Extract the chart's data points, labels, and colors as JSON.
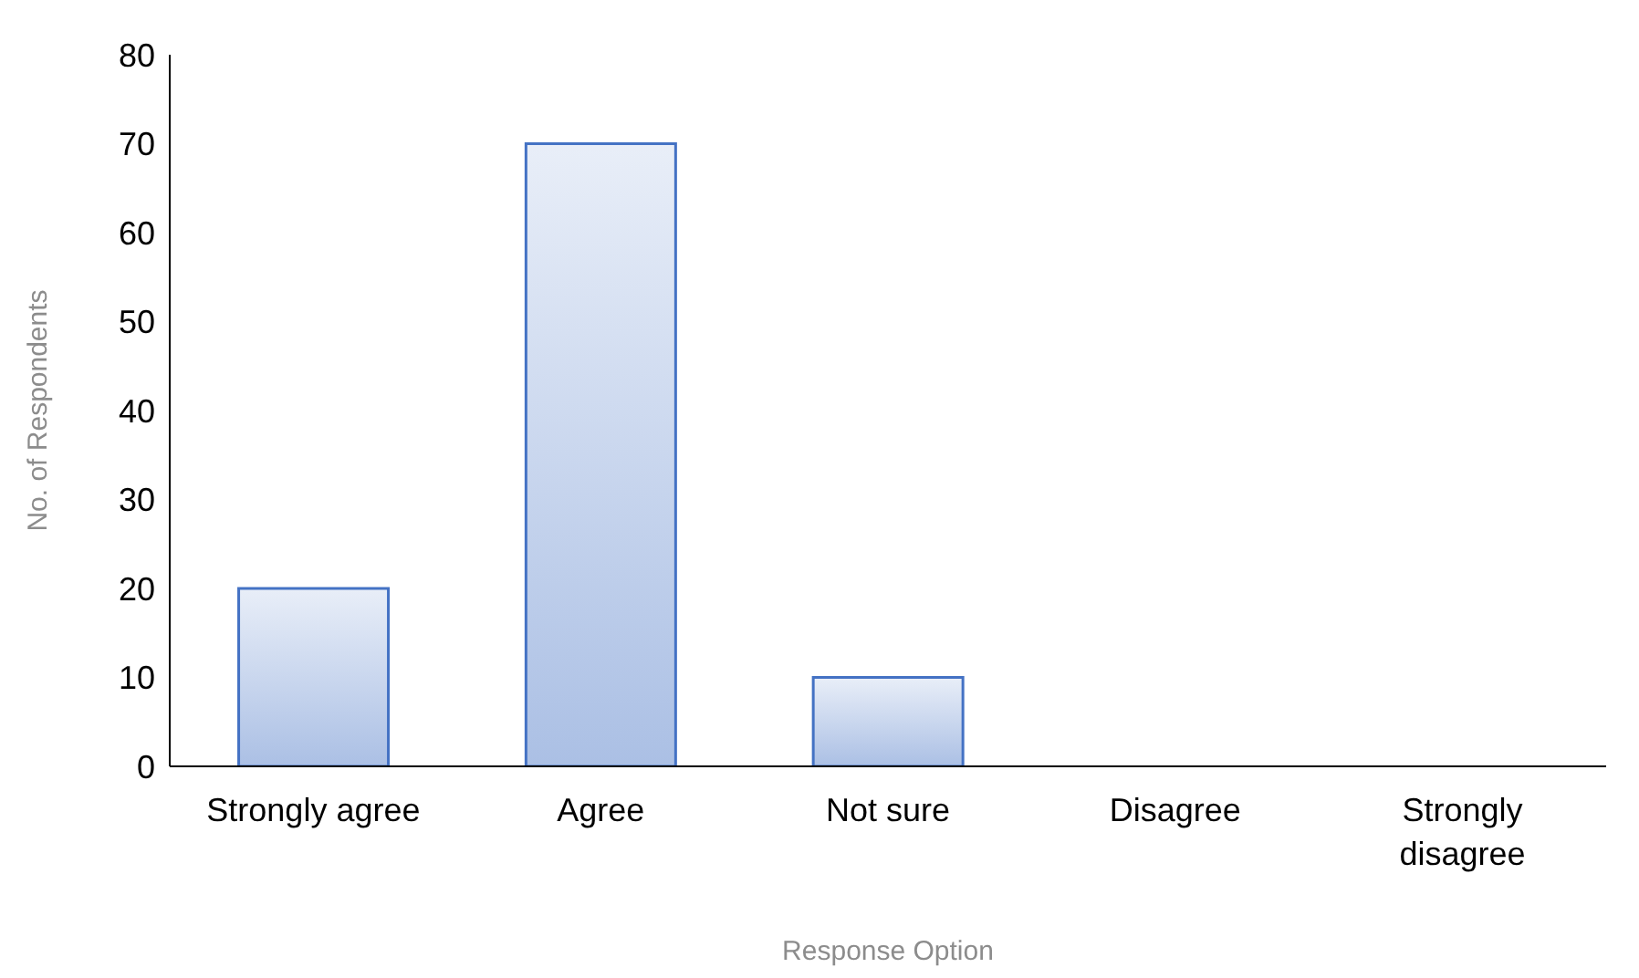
{
  "chart_data": {
    "type": "bar",
    "xlabel": "Response Option",
    "ylabel": "No. of Respondents",
    "categories": [
      "Strongly agree",
      "Agree",
      "Not sure",
      "Disagree",
      "Strongly disagree"
    ],
    "values": [
      20,
      70,
      10,
      0,
      0
    ],
    "color": "#4472c4",
    "ylim": [
      0,
      80
    ],
    "yticks": [
      0,
      10,
      20,
      30,
      40,
      50,
      60,
      70,
      80
    ],
    "grid": false,
    "legend": false
  }
}
